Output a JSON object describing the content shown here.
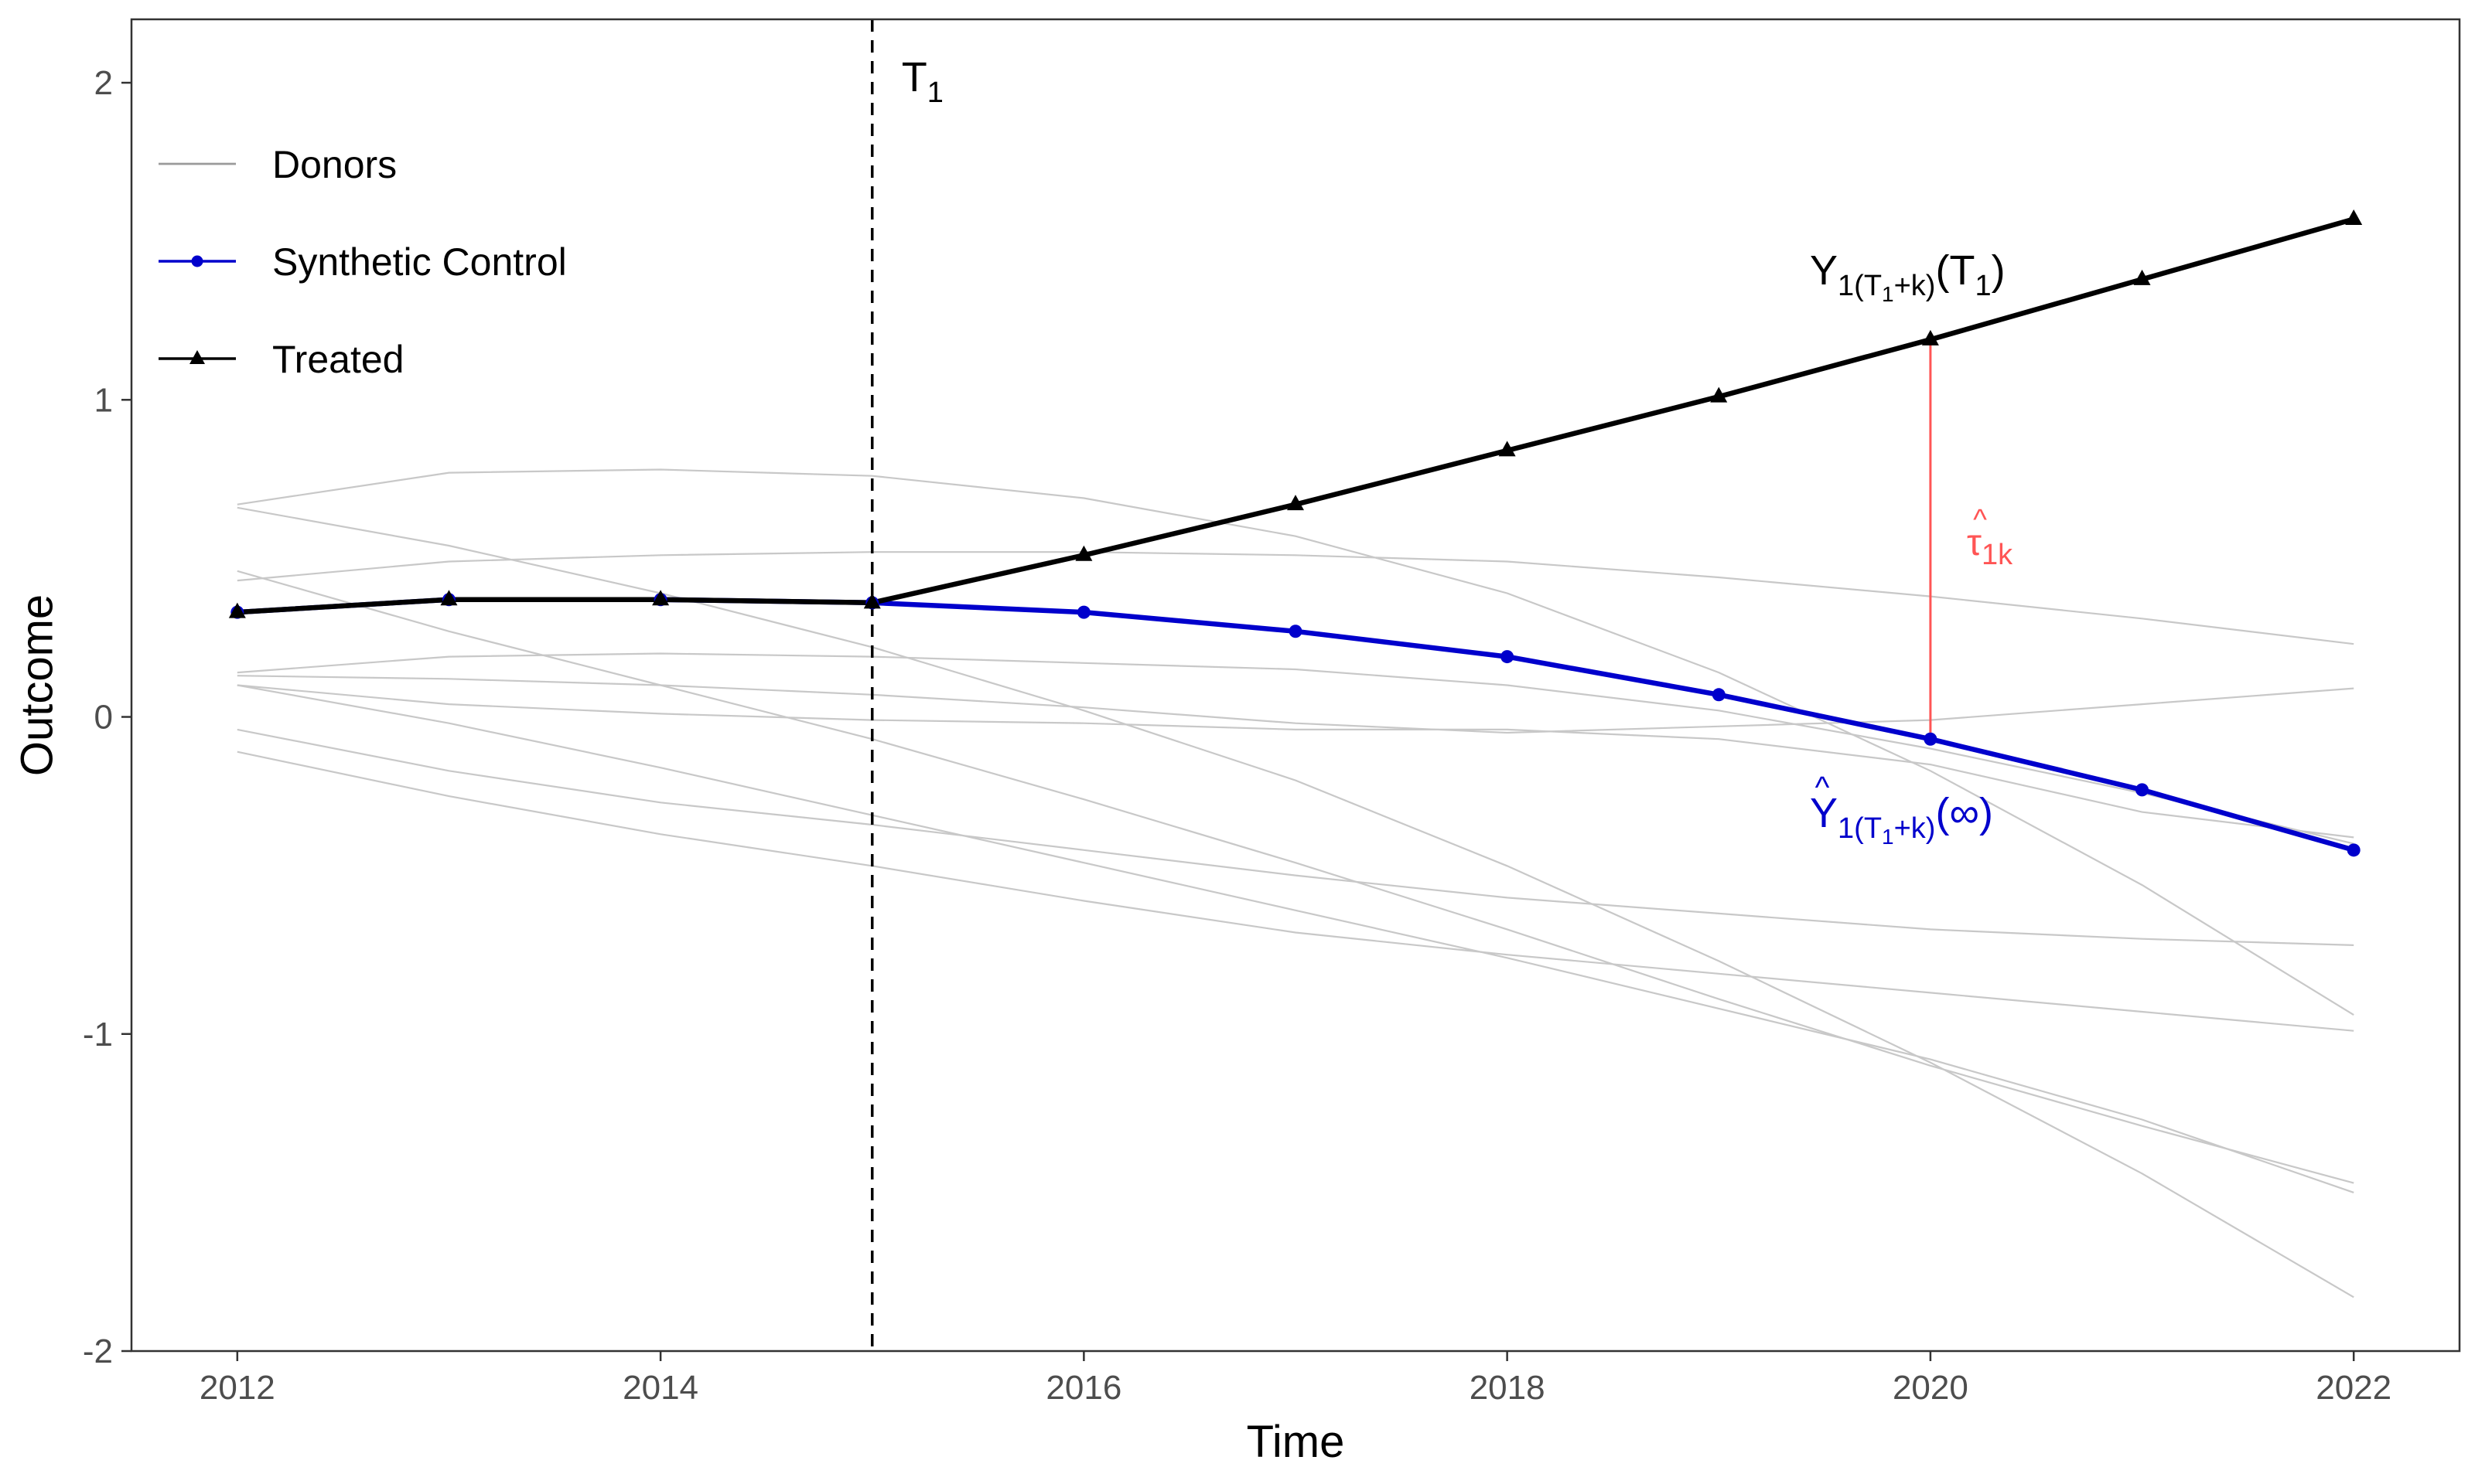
{
  "chart_data": {
    "type": "line",
    "xlabel": "Time",
    "ylabel": "Outcome",
    "xlim": [
      2011.5,
      2022.5
    ],
    "ylim": [
      -2,
      2.2
    ],
    "x_ticks": [
      2012,
      2014,
      2016,
      2018,
      2020,
      2022
    ],
    "x_tick_labels": [
      "2012",
      "2014",
      "2016",
      "2018",
      "2020",
      "2022"
    ],
    "y_ticks": [
      -2,
      -1,
      0,
      1,
      2
    ],
    "y_tick_labels": [
      "-2",
      "-1",
      "0",
      "1",
      "2"
    ],
    "grid": false,
    "legend": {
      "placement": "top-left",
      "entries": [
        {
          "label": "Donors",
          "color": "#9a9a9a",
          "marker": "none"
        },
        {
          "label": "Synthetic Control",
          "color": "#0000cc",
          "marker": "circle"
        },
        {
          "label": "Treated",
          "color": "#000000",
          "marker": "triangle"
        }
      ]
    },
    "x": [
      2012,
      2013,
      2014,
      2015,
      2016,
      2017,
      2018,
      2019,
      2020,
      2021,
      2022
    ],
    "treatment_time": {
      "x": 2015,
      "label": "T",
      "label_sub": "1"
    },
    "series": [
      {
        "name": "Treated",
        "color": "#000000",
        "marker": "triangle",
        "values": [
          0.33,
          0.37,
          0.37,
          0.36,
          0.51,
          0.67,
          0.84,
          1.01,
          1.19,
          1.38,
          1.57
        ]
      },
      {
        "name": "Synthetic Control",
        "color": "#0000cc",
        "marker": "circle",
        "values": [
          0.33,
          0.37,
          0.37,
          0.36,
          0.33,
          0.27,
          0.19,
          0.07,
          -0.07,
          -0.23,
          -0.42
        ]
      }
    ],
    "donors": [
      [
        0.67,
        0.77,
        0.78,
        0.76,
        0.69,
        0.57,
        0.39,
        0.14,
        -0.17,
        -0.53,
        -0.94
      ],
      [
        0.66,
        0.54,
        0.39,
        0.22,
        0.02,
        -0.2,
        -0.47,
        -0.77,
        -1.09,
        -1.44,
        -1.83
      ],
      [
        0.46,
        0.27,
        0.1,
        -0.07,
        -0.26,
        -0.46,
        -0.67,
        -0.89,
        -1.1,
        -1.29,
        -1.47
      ],
      [
        0.43,
        0.49,
        0.51,
        0.52,
        0.52,
        0.51,
        0.49,
        0.44,
        0.38,
        0.31,
        0.23
      ],
      [
        0.14,
        0.19,
        0.2,
        0.19,
        0.17,
        0.15,
        0.1,
        0.02,
        -0.1,
        -0.24,
        -0.4
      ],
      [
        0.13,
        0.12,
        0.1,
        0.07,
        0.03,
        -0.02,
        -0.05,
        -0.03,
        -0.01,
        0.04,
        0.09
      ],
      [
        0.1,
        0.04,
        0.01,
        -0.01,
        -0.02,
        -0.04,
        -0.04,
        -0.07,
        -0.15,
        -0.3,
        -0.38
      ],
      [
        0.1,
        -0.02,
        -0.16,
        -0.31,
        -0.46,
        -0.61,
        -0.76,
        -0.92,
        -1.08,
        -1.27,
        -1.5
      ],
      [
        -0.04,
        -0.17,
        -0.27,
        -0.34,
        -0.42,
        -0.5,
        -0.57,
        -0.62,
        -0.67,
        -0.7,
        -0.72
      ],
      [
        -0.11,
        -0.25,
        -0.37,
        -0.47,
        -0.58,
        -0.68,
        -0.75,
        -0.81,
        -0.87,
        -0.93,
        -0.99
      ]
    ],
    "annotations": {
      "treated_label": {
        "x": 2020,
        "main": "Y",
        "sub": "1(T",
        "sub2": "1",
        "sub3": "+k)",
        "suffix_open": "(T",
        "suffix_sub": "1",
        "suffix_close": ")",
        "color": "#000000"
      },
      "synthetic_label": {
        "x": 2020,
        "main": "Y",
        "hat": "^",
        "sub": "1(T",
        "sub2": "1",
        "sub3": "+k)",
        "suffix": "(∞)",
        "color": "#0000cc"
      },
      "effect": {
        "x": 2020,
        "from": -0.07,
        "to": 1.19,
        "label": "τ",
        "hat": "^",
        "sub": "1k",
        "color": "#ff5555"
      }
    }
  }
}
